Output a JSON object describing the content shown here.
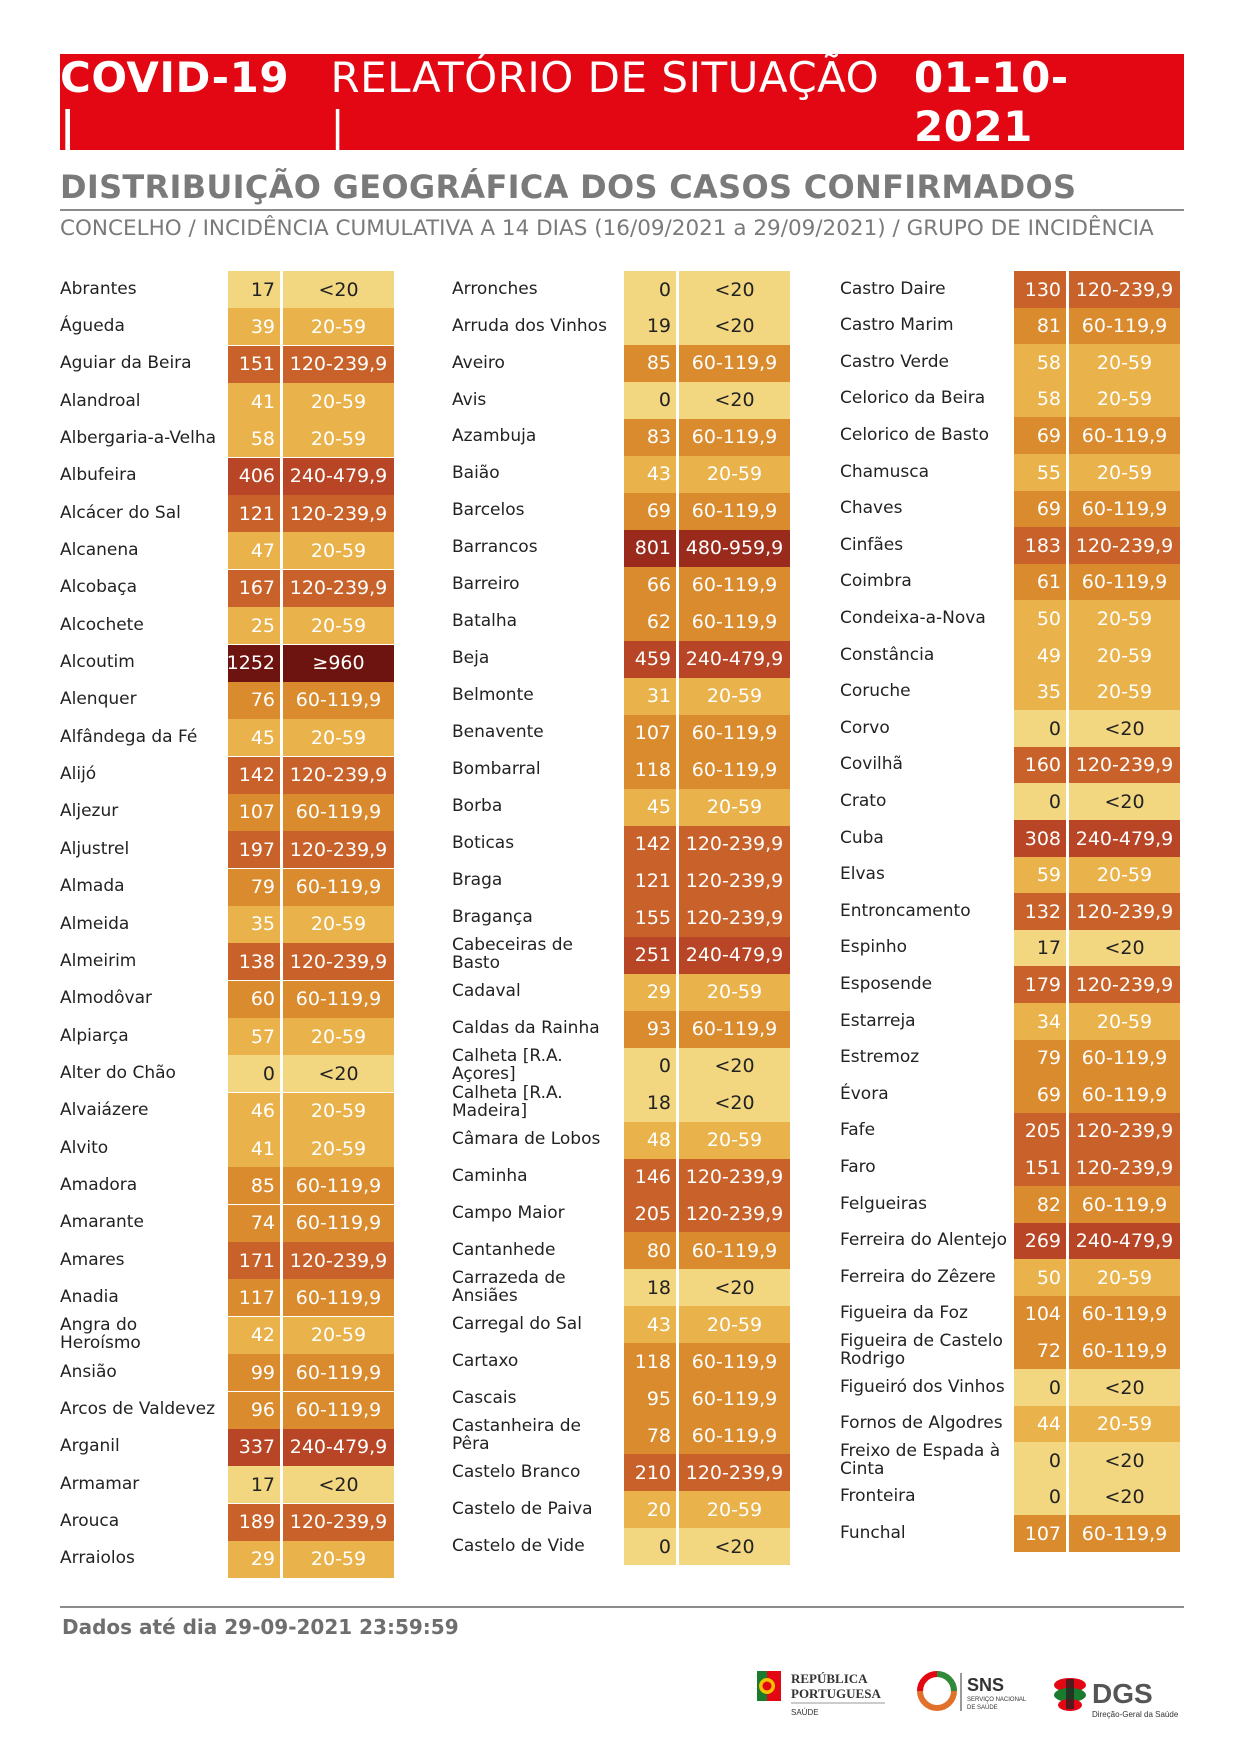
{
  "header": {
    "title_part1": "COVID-19 | ",
    "title_part2": "RELATÓRIO DE SITUAÇÃO | ",
    "title_part3": "01-10-2021"
  },
  "section": {
    "heading": "DISTRIBUIÇÃO GEOGRÁFICA DOS CASOS CONFIRMADOS",
    "subheading": "CONCELHO / INCIDÊNCIA CUMULATIVA A 14 DIAS (16/09/2021 a 29/09/2021) / GRUPO DE INCIDÊNCIA"
  },
  "colors": {
    "<20": "#f2d780",
    "20-59": "#e9b24a",
    "60-119,9": "#d98b2e",
    "120-239,9": "#c8622a",
    "240-479,9": "#b84525",
    "480-959,9": "#9a2a1c",
    "≥960": "#6e1410"
  },
  "columns": [
    [
      {
        "name": "Abrantes",
        "value": "17",
        "group": "<20"
      },
      {
        "name": "Águeda",
        "value": "39",
        "group": "20-59"
      },
      {
        "name": "Aguiar da Beira",
        "value": "151",
        "group": "120-239,9"
      },
      {
        "name": "Alandroal",
        "value": "41",
        "group": "20-59"
      },
      {
        "name": "Albergaria-a-Velha",
        "value": "58",
        "group": "20-59"
      },
      {
        "name": "Albufeira",
        "value": "406",
        "group": "240-479,9"
      },
      {
        "name": "Alcácer do Sal",
        "value": "121",
        "group": "120-239,9"
      },
      {
        "name": "Alcanena",
        "value": "47",
        "group": "20-59"
      },
      {
        "name": "Alcobaça",
        "value": "167",
        "group": "120-239,9"
      },
      {
        "name": "Alcochete",
        "value": "25",
        "group": "20-59"
      },
      {
        "name": "Alcoutim",
        "value": "1252",
        "group": "≥960"
      },
      {
        "name": "Alenquer",
        "value": "76",
        "group": "60-119,9"
      },
      {
        "name": "Alfândega da Fé",
        "value": "45",
        "group": "20-59"
      },
      {
        "name": "Alijó",
        "value": "142",
        "group": "120-239,9"
      },
      {
        "name": "Aljezur",
        "value": "107",
        "group": "60-119,9"
      },
      {
        "name": "Aljustrel",
        "value": "197",
        "group": "120-239,9"
      },
      {
        "name": "Almada",
        "value": "79",
        "group": "60-119,9"
      },
      {
        "name": "Almeida",
        "value": "35",
        "group": "20-59"
      },
      {
        "name": "Almeirim",
        "value": "138",
        "group": "120-239,9"
      },
      {
        "name": "Almodôvar",
        "value": "60",
        "group": "60-119,9"
      },
      {
        "name": "Alpiarça",
        "value": "57",
        "group": "20-59"
      },
      {
        "name": "Alter do Chão",
        "value": "0",
        "group": "<20"
      },
      {
        "name": "Alvaiázere",
        "value": "46",
        "group": "20-59"
      },
      {
        "name": "Alvito",
        "value": "41",
        "group": "20-59"
      },
      {
        "name": "Amadora",
        "value": "85",
        "group": "60-119,9"
      },
      {
        "name": "Amarante",
        "value": "74",
        "group": "60-119,9"
      },
      {
        "name": "Amares",
        "value": "171",
        "group": "120-239,9"
      },
      {
        "name": "Anadia",
        "value": "117",
        "group": "60-119,9"
      },
      {
        "name": "Angra do Heroísmo",
        "value": "42",
        "group": "20-59"
      },
      {
        "name": "Ansião",
        "value": "99",
        "group": "60-119,9"
      },
      {
        "name": "Arcos de Valdevez",
        "value": "96",
        "group": "60-119,9"
      },
      {
        "name": "Arganil",
        "value": "337",
        "group": "240-479,9"
      },
      {
        "name": "Armamar",
        "value": "17",
        "group": "<20"
      },
      {
        "name": "Arouca",
        "value": "189",
        "group": "120-239,9"
      },
      {
        "name": "Arraiolos",
        "value": "29",
        "group": "20-59"
      }
    ],
    [
      {
        "name": "Arronches",
        "value": "0",
        "group": "<20"
      },
      {
        "name": "Arruda dos Vinhos",
        "value": "19",
        "group": "<20"
      },
      {
        "name": "Aveiro",
        "value": "85",
        "group": "60-119,9"
      },
      {
        "name": "Avis",
        "value": "0",
        "group": "<20"
      },
      {
        "name": "Azambuja",
        "value": "83",
        "group": "60-119,9"
      },
      {
        "name": "Baião",
        "value": "43",
        "group": "20-59"
      },
      {
        "name": "Barcelos",
        "value": "69",
        "group": "60-119,9"
      },
      {
        "name": "Barrancos",
        "value": "801",
        "group": "480-959,9"
      },
      {
        "name": "Barreiro",
        "value": "66",
        "group": "60-119,9"
      },
      {
        "name": "Batalha",
        "value": "62",
        "group": "60-119,9"
      },
      {
        "name": "Beja",
        "value": "459",
        "group": "240-479,9"
      },
      {
        "name": "Belmonte",
        "value": "31",
        "group": "20-59"
      },
      {
        "name": "Benavente",
        "value": "107",
        "group": "60-119,9"
      },
      {
        "name": "Bombarral",
        "value": "118",
        "group": "60-119,9"
      },
      {
        "name": "Borba",
        "value": "45",
        "group": "20-59"
      },
      {
        "name": "Boticas",
        "value": "142",
        "group": "120-239,9"
      },
      {
        "name": "Braga",
        "value": "121",
        "group": "120-239,9"
      },
      {
        "name": "Bragança",
        "value": "155",
        "group": "120-239,9"
      },
      {
        "name": "Cabeceiras de Basto",
        "value": "251",
        "group": "240-479,9"
      },
      {
        "name": "Cadaval",
        "value": "29",
        "group": "20-59"
      },
      {
        "name": "Caldas da Rainha",
        "value": "93",
        "group": "60-119,9"
      },
      {
        "name": "Calheta [R.A. Açores]",
        "value": "0",
        "group": "<20"
      },
      {
        "name": "Calheta [R.A. Madeira]",
        "value": "18",
        "group": "<20"
      },
      {
        "name": "Câmara de Lobos",
        "value": "48",
        "group": "20-59"
      },
      {
        "name": "Caminha",
        "value": "146",
        "group": "120-239,9"
      },
      {
        "name": "Campo Maior",
        "value": "205",
        "group": "120-239,9"
      },
      {
        "name": "Cantanhede",
        "value": "80",
        "group": "60-119,9"
      },
      {
        "name": "Carrazeda de Ansiães",
        "value": "18",
        "group": "<20"
      },
      {
        "name": "Carregal do Sal",
        "value": "43",
        "group": "20-59"
      },
      {
        "name": "Cartaxo",
        "value": "118",
        "group": "60-119,9"
      },
      {
        "name": "Cascais",
        "value": "95",
        "group": "60-119,9"
      },
      {
        "name": "Castanheira de Pêra",
        "value": "78",
        "group": "60-119,9"
      },
      {
        "name": "Castelo Branco",
        "value": "210",
        "group": "120-239,9"
      },
      {
        "name": "Castelo de Paiva",
        "value": "20",
        "group": "20-59"
      },
      {
        "name": "Castelo de Vide",
        "value": "0",
        "group": "<20"
      }
    ],
    [
      {
        "name": "Castro Daire",
        "value": "130",
        "group": "120-239,9"
      },
      {
        "name": "Castro Marim",
        "value": "81",
        "group": "60-119,9"
      },
      {
        "name": "Castro Verde",
        "value": "58",
        "group": "20-59"
      },
      {
        "name": "Celorico da Beira",
        "value": "58",
        "group": "20-59"
      },
      {
        "name": "Celorico de Basto",
        "value": "69",
        "group": "60-119,9"
      },
      {
        "name": "Chamusca",
        "value": "55",
        "group": "20-59"
      },
      {
        "name": "Chaves",
        "value": "69",
        "group": "60-119,9"
      },
      {
        "name": "Cinfães",
        "value": "183",
        "group": "120-239,9"
      },
      {
        "name": "Coimbra",
        "value": "61",
        "group": "60-119,9"
      },
      {
        "name": "Condeixa-a-Nova",
        "value": "50",
        "group": "20-59"
      },
      {
        "name": "Constância",
        "value": "49",
        "group": "20-59"
      },
      {
        "name": "Coruche",
        "value": "35",
        "group": "20-59"
      },
      {
        "name": "Corvo",
        "value": "0",
        "group": "<20"
      },
      {
        "name": "Covilhã",
        "value": "160",
        "group": "120-239,9"
      },
      {
        "name": "Crato",
        "value": "0",
        "group": "<20"
      },
      {
        "name": "Cuba",
        "value": "308",
        "group": "240-479,9"
      },
      {
        "name": "Elvas",
        "value": "59",
        "group": "20-59"
      },
      {
        "name": "Entroncamento",
        "value": "132",
        "group": "120-239,9"
      },
      {
        "name": "Espinho",
        "value": "17",
        "group": "<20"
      },
      {
        "name": "Esposende",
        "value": "179",
        "group": "120-239,9"
      },
      {
        "name": "Estarreja",
        "value": "34",
        "group": "20-59"
      },
      {
        "name": "Estremoz",
        "value": "79",
        "group": "60-119,9"
      },
      {
        "name": "Évora",
        "value": "69",
        "group": "60-119,9"
      },
      {
        "name": "Fafe",
        "value": "205",
        "group": "120-239,9"
      },
      {
        "name": "Faro",
        "value": "151",
        "group": "120-239,9"
      },
      {
        "name": "Felgueiras",
        "value": "82",
        "group": "60-119,9"
      },
      {
        "name": "Ferreira do Alentejo",
        "value": "269",
        "group": "240-479,9"
      },
      {
        "name": "Ferreira do Zêzere",
        "value": "50",
        "group": "20-59"
      },
      {
        "name": "Figueira da Foz",
        "value": "104",
        "group": "60-119,9"
      },
      {
        "name": "Figueira de Castelo Rodrigo",
        "value": "72",
        "group": "60-119,9"
      },
      {
        "name": "Figueiró dos Vinhos",
        "value": "0",
        "group": "<20"
      },
      {
        "name": "Fornos de Algodres",
        "value": "44",
        "group": "20-59"
      },
      {
        "name": "Freixo de Espada à Cinta",
        "value": "0",
        "group": "<20"
      },
      {
        "name": "Fronteira",
        "value": "0",
        "group": "<20"
      },
      {
        "name": "Funchal",
        "value": "107",
        "group": "60-119,9"
      }
    ]
  ],
  "footer": {
    "note": "Dados até dia 29-09-2021 23:59:59",
    "logo_republica_line1": "REPÚBLICA",
    "logo_republica_line2": "PORTUGUESA",
    "logo_republica_line3": "SAÚDE",
    "logo_sns_title": "SNS",
    "logo_sns_sub1": "SERVIÇO NACIONAL",
    "logo_sns_sub2": "DE SAÚDE",
    "logo_dgs_title": "DGS",
    "logo_dgs_sub": "Direção-Geral da Saúde"
  }
}
